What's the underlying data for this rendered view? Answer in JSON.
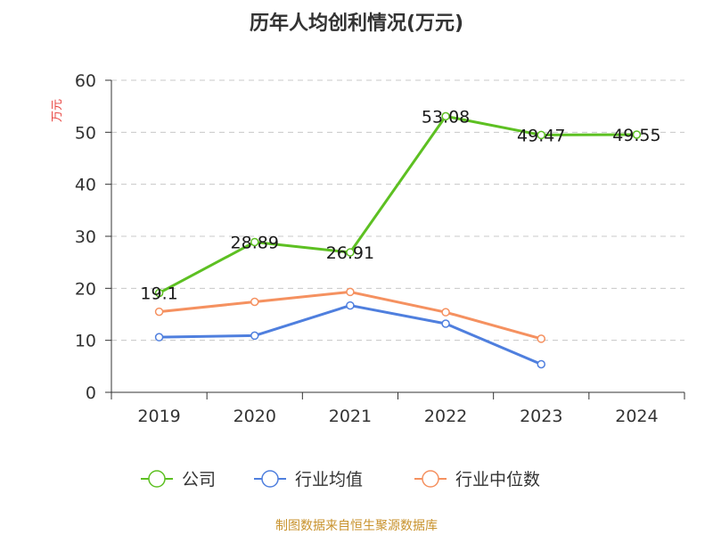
{
  "chart_data": {
    "type": "line",
    "title": "历年人均创利情况(万元)",
    "ylabel": "万元",
    "xlabel": "",
    "categories": [
      "2019",
      "2020",
      "2021",
      "2022",
      "2023",
      "2024"
    ],
    "ylim": [
      0,
      60
    ],
    "yticks": [
      0,
      10,
      20,
      30,
      40,
      50,
      60
    ],
    "grid": true,
    "legend_position": "bottom",
    "series": [
      {
        "name": "公司",
        "color": "#5dc022",
        "values": [
          19.1,
          28.89,
          26.91,
          53.08,
          49.47,
          49.55
        ],
        "labels": [
          "19.1",
          "28.89",
          "26.91",
          "53.08",
          "49.47",
          "49.55"
        ]
      },
      {
        "name": "行业均值",
        "color": "#4f7fde",
        "values": [
          10.6,
          10.9,
          16.7,
          13.2,
          5.4,
          null
        ]
      },
      {
        "name": "行业中位数",
        "color": "#f59160",
        "values": [
          15.5,
          17.4,
          19.3,
          15.4,
          10.3,
          null
        ]
      }
    ],
    "source": "制图数据来自恒生聚源数据库"
  }
}
